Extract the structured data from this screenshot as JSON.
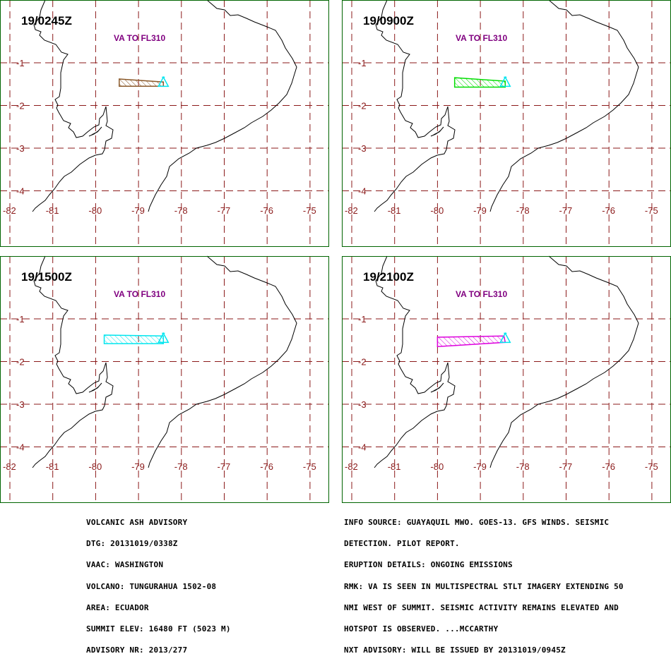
{
  "colors": {
    "frame": "#006400",
    "grid": "#8b1a1a",
    "coast": "#000000",
    "label_text": "#800080",
    "vent": "#00e5ee"
  },
  "map": {
    "lon_ticks": [
      -82,
      -81,
      -80,
      -79,
      -78,
      -77,
      -76,
      -75
    ],
    "lat_ticks": [
      -1,
      -2,
      -3,
      -4
    ],
    "lon_range": [
      -82.1,
      -74.6
    ],
    "lat_range": [
      0.2,
      -4.5
    ],
    "lon_tick_labels": [
      "-82",
      "-81",
      "-80",
      "-79",
      "-78",
      "-77",
      "-76",
      "-75"
    ],
    "lat_tick_labels": [
      "-1",
      "-2",
      "-3",
      "-4"
    ],
    "vent": {
      "lon": -78.42,
      "lat": -1.47,
      "icon": "volcano-triangle-icon"
    }
  },
  "panels": [
    {
      "time": "19/0245Z",
      "label": "VA TO FL310",
      "color": "#8b5a2b",
      "polygon": [
        [
          -79.45,
          -1.38
        ],
        [
          -78.42,
          -1.45
        ],
        [
          -78.42,
          -1.55
        ],
        [
          -79.45,
          -1.55
        ]
      ]
    },
    {
      "time": "19/0900Z",
      "label": "VA TO FL310",
      "color": "#00dd00",
      "polygon": [
        [
          -79.6,
          -1.35
        ],
        [
          -78.42,
          -1.43
        ],
        [
          -78.42,
          -1.57
        ],
        [
          -79.6,
          -1.57
        ]
      ]
    },
    {
      "time": "19/1500Z",
      "label": "VA TO FL310",
      "color": "#00e5ee",
      "polygon": [
        [
          -79.8,
          -1.38
        ],
        [
          -78.42,
          -1.4
        ],
        [
          -78.42,
          -1.58
        ],
        [
          -79.8,
          -1.58
        ]
      ]
    },
    {
      "time": "19/2100Z",
      "label": "VA TO FL310",
      "color": "#dd00dd",
      "polygon": [
        [
          -80.0,
          -1.43
        ],
        [
          -78.45,
          -1.4
        ],
        [
          -78.42,
          -1.55
        ],
        [
          -80.0,
          -1.65
        ]
      ]
    }
  ],
  "advisory_left": [
    "VOLCANIC ASH ADVISORY",
    "DTG: 20131019/0338Z",
    "VAAC: WASHINGTON",
    "VOLCANO: TUNGURAHUA 1502-08",
    "AREA: ECUADOR",
    "SUMMIT ELEV: 16480 FT (5023 M)",
    "ADVISORY NR: 2013/277"
  ],
  "advisory_right": [
    "INFO SOURCE: GUAYAQUIL MWO. GOES-13. GFS WINDS. SEISMIC",
    "DETECTION. PILOT REPORT.",
    "ERUPTION DETAILS: ONGOING EMISSIONS",
    "RMK: VA IS SEEN IN MULTISPECTRAL STLT IMAGERY EXTENDING 50",
    "NMI WEST OF SUMMIT. SEISMIC ACTIVITY REMAINS ELEVATED AND",
    "HOTSPOT IS OBSERVED. ...MCCARTHY",
    "NXT ADVISORY: WILL BE ISSUED BY 20131019/0945Z"
  ]
}
